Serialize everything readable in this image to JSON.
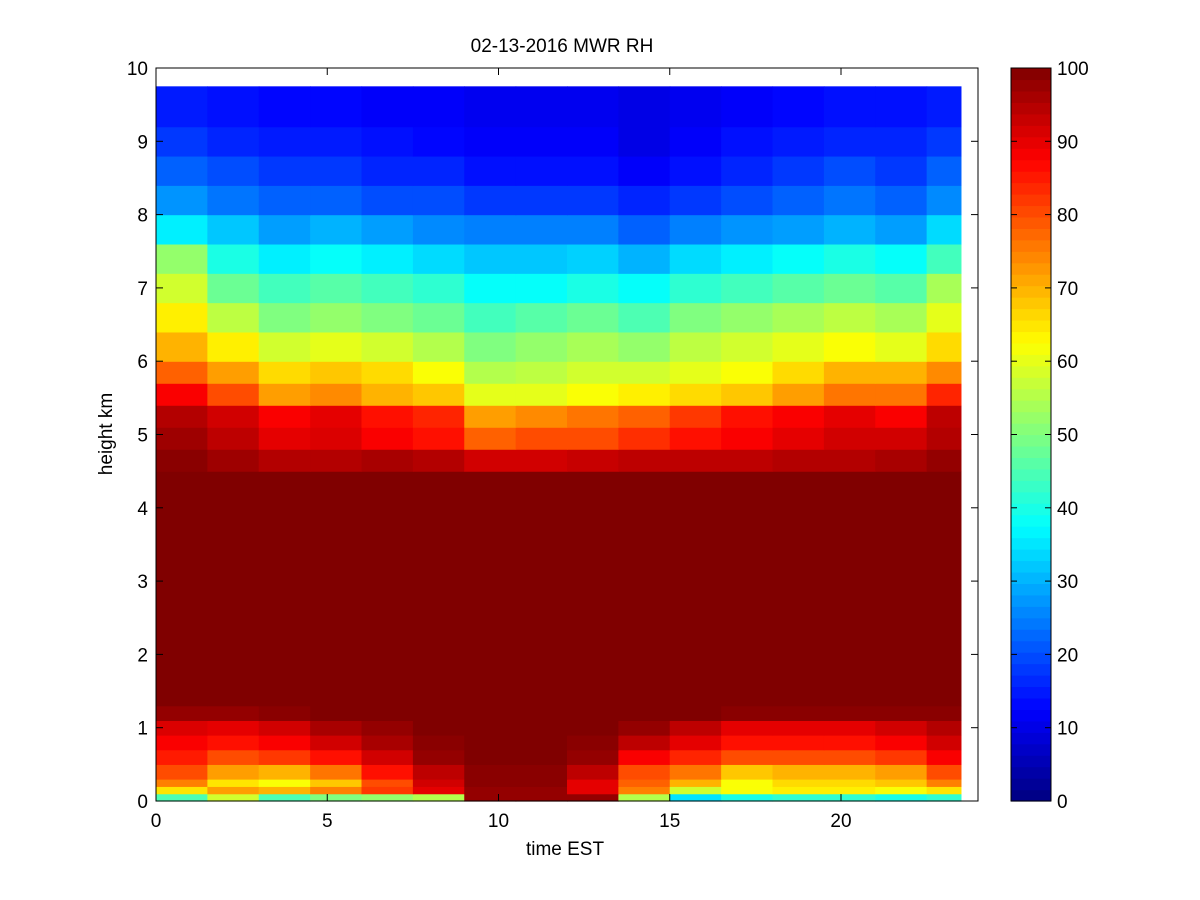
{
  "chart_data": {
    "type": "heatmap",
    "title": "02-13-2016 MWR RH",
    "xlabel": "time EST",
    "ylabel": "height km",
    "xlim": [
      0,
      24
    ],
    "ylim": [
      0,
      10
    ],
    "xticks": [
      0,
      5,
      10,
      15,
      20
    ],
    "yticks": [
      0,
      1,
      2,
      3,
      4,
      5,
      6,
      7,
      8,
      9,
      10
    ],
    "colorbar": {
      "colormap": "jet",
      "clim": [
        0,
        100
      ],
      "ticks": [
        0,
        10,
        20,
        30,
        40,
        50,
        60,
        70,
        80,
        90,
        100
      ]
    },
    "time_edges_est": [
      0,
      1.5,
      3,
      4.5,
      6,
      7.5,
      9,
      10.5,
      12,
      13.5,
      15,
      16.5,
      18,
      19.5,
      21,
      22.5,
      23.5
    ],
    "height_edges_km": [
      0,
      0.1,
      0.2,
      0.3,
      0.5,
      0.7,
      0.9,
      1.1,
      1.3,
      4.5,
      4.8,
      5.1,
      5.4,
      5.7,
      6.0,
      6.4,
      6.8,
      7.2,
      7.6,
      8.0,
      8.4,
      8.8,
      9.2,
      9.75
    ],
    "rh_percent": [
      [
        45,
        58,
        45,
        50,
        52,
        55,
        98,
        98,
        98,
        55,
        35,
        40,
        42,
        42,
        40,
        42
      ],
      [
        65,
        72,
        70,
        75,
        82,
        90,
        98,
        98,
        90,
        75,
        58,
        62,
        64,
        64,
        62,
        65
      ],
      [
        75,
        65,
        62,
        68,
        80,
        92,
        99,
        99,
        90,
        78,
        70,
        62,
        66,
        66,
        68,
        75
      ],
      [
        80,
        72,
        70,
        76,
        86,
        94,
        99,
        99,
        94,
        80,
        76,
        68,
        70,
        70,
        72,
        80
      ],
      [
        85,
        80,
        82,
        86,
        92,
        98,
        100,
        100,
        98,
        88,
        84,
        80,
        80,
        80,
        82,
        88
      ],
      [
        88,
        86,
        88,
        92,
        96,
        99,
        100,
        100,
        99,
        94,
        90,
        86,
        86,
        86,
        88,
        92
      ],
      [
        91,
        90,
        92,
        96,
        98,
        100,
        100,
        100,
        100,
        98,
        94,
        90,
        90,
        90,
        92,
        95
      ],
      [
        98,
        98,
        99,
        100,
        100,
        100,
        100,
        100,
        100,
        100,
        100,
        99,
        99,
        99,
        99,
        99
      ],
      [
        100,
        100,
        100,
        100,
        100,
        100,
        100,
        100,
        100,
        100,
        100,
        100,
        100,
        100,
        100,
        100
      ],
      [
        99,
        97,
        95,
        95,
        96,
        95,
        92,
        92,
        93,
        94,
        94,
        94,
        95,
        95,
        96,
        98
      ],
      [
        97,
        94,
        90,
        91,
        88,
        86,
        78,
        80,
        80,
        83,
        86,
        88,
        90,
        92,
        92,
        95
      ],
      [
        95,
        92,
        88,
        90,
        86,
        84,
        72,
        74,
        76,
        78,
        82,
        86,
        88,
        90,
        88,
        94
      ],
      [
        88,
        80,
        72,
        74,
        70,
        68,
        60,
        60,
        62,
        64,
        66,
        68,
        72,
        76,
        76,
        84
      ],
      [
        78,
        72,
        66,
        68,
        66,
        62,
        55,
        56,
        58,
        58,
        60,
        62,
        66,
        70,
        70,
        74
      ],
      [
        70,
        64,
        58,
        60,
        58,
        55,
        50,
        52,
        54,
        52,
        56,
        58,
        60,
        62,
        60,
        66
      ],
      [
        64,
        56,
        50,
        52,
        50,
        48,
        44,
        46,
        48,
        45,
        50,
        52,
        54,
        56,
        54,
        60
      ],
      [
        58,
        48,
        44,
        46,
        44,
        42,
        38,
        38,
        40,
        38,
        42,
        44,
        46,
        48,
        46,
        54
      ],
      [
        52,
        40,
        36,
        38,
        36,
        34,
        32,
        32,
        33,
        30,
        34,
        36,
        38,
        40,
        38,
        44
      ],
      [
        36,
        32,
        28,
        30,
        28,
        26,
        25,
        25,
        25,
        22,
        25,
        27,
        28,
        30,
        28,
        34
      ],
      [
        27,
        24,
        22,
        22,
        20,
        20,
        18,
        18,
        18,
        16,
        18,
        20,
        22,
        24,
        22,
        26
      ],
      [
        22,
        20,
        18,
        18,
        16,
        16,
        14,
        14,
        14,
        12,
        14,
        16,
        18,
        20,
        18,
        22
      ],
      [
        18,
        16,
        15,
        15,
        14,
        13,
        12,
        12,
        12,
        10,
        12,
        14,
        15,
        16,
        16,
        18
      ],
      [
        15,
        14,
        13,
        13,
        12,
        12,
        11,
        11,
        11,
        10,
        11,
        12,
        13,
        14,
        14,
        15
      ]
    ]
  }
}
